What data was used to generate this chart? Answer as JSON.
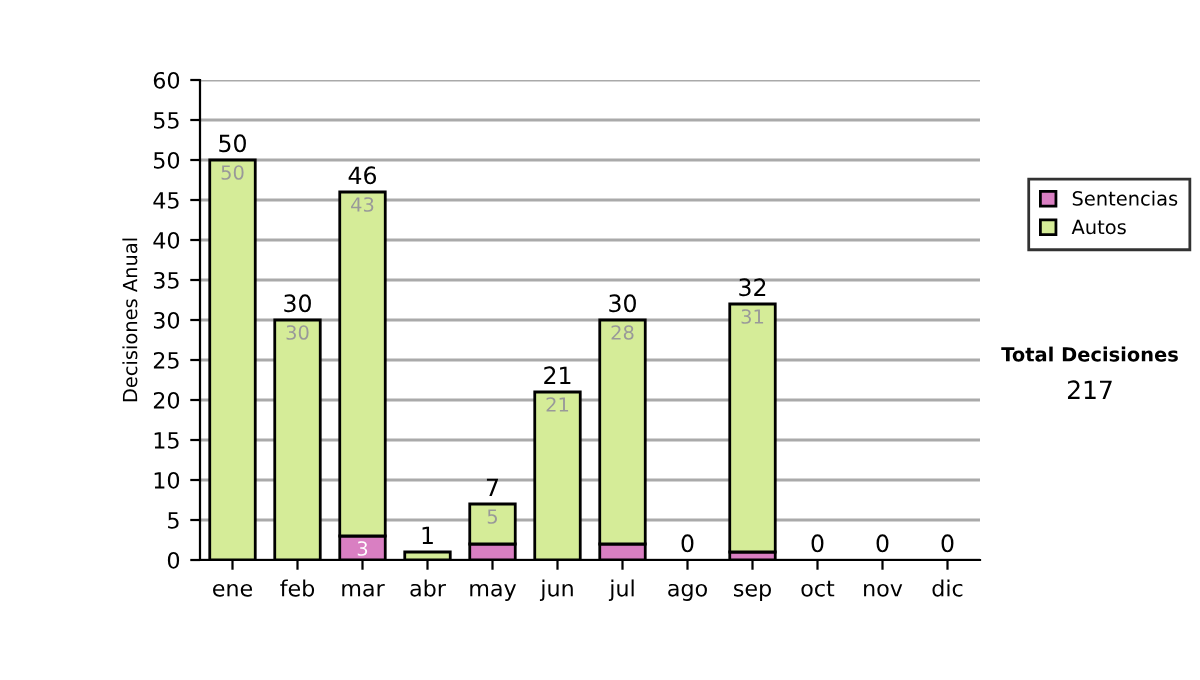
{
  "chart_data": {
    "type": "bar",
    "stacked": true,
    "ylabel": "Decisiones Anual",
    "categories": [
      "ene",
      "feb",
      "mar",
      "abr",
      "may",
      "jun",
      "jul",
      "ago",
      "sep",
      "oct",
      "nov",
      "dic"
    ],
    "series": [
      {
        "name": "Sentencias",
        "color": "#d97fc2",
        "values": [
          0,
          0,
          3,
          0,
          2,
          0,
          2,
          0,
          1,
          0,
          0,
          0
        ],
        "value_labels": [
          null,
          null,
          "3",
          null,
          null,
          null,
          null,
          null,
          null,
          null,
          null,
          null
        ]
      },
      {
        "name": "Autos",
        "color": "#d5ec98",
        "values": [
          50,
          30,
          43,
          1,
          5,
          21,
          28,
          0,
          31,
          0,
          0,
          0
        ],
        "value_labels": [
          "50",
          "30",
          "43",
          null,
          "5",
          "21",
          "28",
          null,
          "31",
          null,
          null,
          null
        ]
      }
    ],
    "totals": [
      "50",
      "30",
      "46",
      "1",
      "7",
      "21",
      "30",
      "0",
      "32",
      "0",
      "0",
      "0"
    ],
    "ylim": [
      0,
      60
    ],
    "yticks": [
      0,
      5,
      10,
      15,
      20,
      25,
      30,
      35,
      40,
      45,
      50,
      55,
      60
    ],
    "grid": "y",
    "legend": "right",
    "annotations": [
      "Total Decisiones",
      "217"
    ]
  }
}
